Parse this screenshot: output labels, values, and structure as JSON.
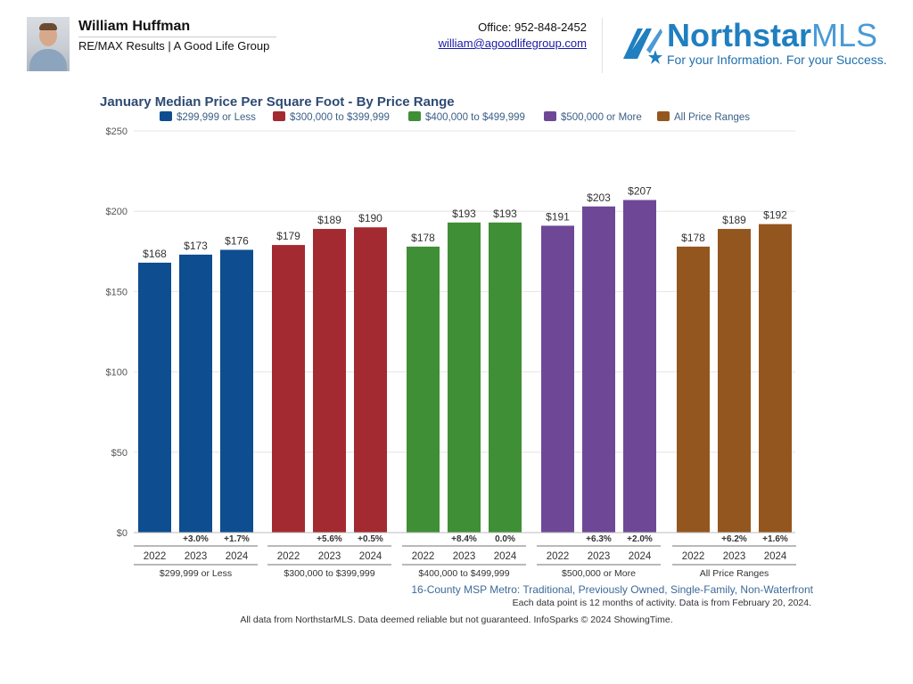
{
  "header": {
    "agent_name": "William Huffman",
    "company": "RE/MAX Results | A Good Life Group",
    "office": "Office: 952-848-2452",
    "email": "william@agoodlifegroup.com",
    "logo_brand": "Northstar",
    "logo_brand_suffix": "MLS",
    "logo_tagline": "For your Information. For your Success.",
    "avatar_icon": "person-photo-icon",
    "logo_icon": "northstar-star-icon"
  },
  "chart_data": {
    "type": "bar",
    "title": "January Median Price Per Square Foot - By Price Range",
    "ylim": [
      0,
      250
    ],
    "yticks": [
      0,
      50,
      100,
      150,
      200,
      250
    ],
    "ytick_labels": [
      "$0",
      "$50",
      "$100",
      "$150",
      "$200",
      "$250"
    ],
    "legend_position": "top",
    "grid": true,
    "years": [
      "2022",
      "2023",
      "2024"
    ],
    "groups": [
      {
        "name": "$299,999 or Less",
        "color": "#0e4d8f",
        "values": [
          168,
          173,
          176
        ],
        "value_labels": [
          "$168",
          "$173",
          "$176"
        ],
        "changes": [
          "",
          "+3.0%",
          "+1.7%"
        ]
      },
      {
        "name": "$300,000 to $399,999",
        "color": "#a32a30",
        "values": [
          179,
          189,
          190
        ],
        "value_labels": [
          "$179",
          "$189",
          "$190"
        ],
        "changes": [
          "",
          "+5.6%",
          "+0.5%"
        ]
      },
      {
        "name": "$400,000 to $499,999",
        "color": "#3f8f36",
        "values": [
          178,
          193,
          193
        ],
        "value_labels": [
          "$178",
          "$193",
          "$193"
        ],
        "changes": [
          "",
          "+8.4%",
          "0.0%"
        ]
      },
      {
        "name": "$500,000 or More",
        "color": "#6e4897",
        "values": [
          191,
          203,
          207
        ],
        "value_labels": [
          "$191",
          "$203",
          "$207"
        ],
        "changes": [
          "",
          "+6.3%",
          "+2.0%"
        ]
      },
      {
        "name": "All Price Ranges",
        "color": "#94561f",
        "values": [
          178,
          189,
          192
        ],
        "value_labels": [
          "$178",
          "$189",
          "$192"
        ],
        "changes": [
          "",
          "+6.2%",
          "+1.6%"
        ]
      }
    ]
  },
  "notes": {
    "region": "16-County MSP Metro: Traditional, Previously Owned, Single-Family, Non-Waterfront",
    "activity": "Each data point is 12 months of activity. Data is from February 20, 2024.",
    "disclaimer": "All data from NorthstarMLS. Data deemed reliable but not guaranteed. InfoSparks © 2024 ShowingTime."
  }
}
